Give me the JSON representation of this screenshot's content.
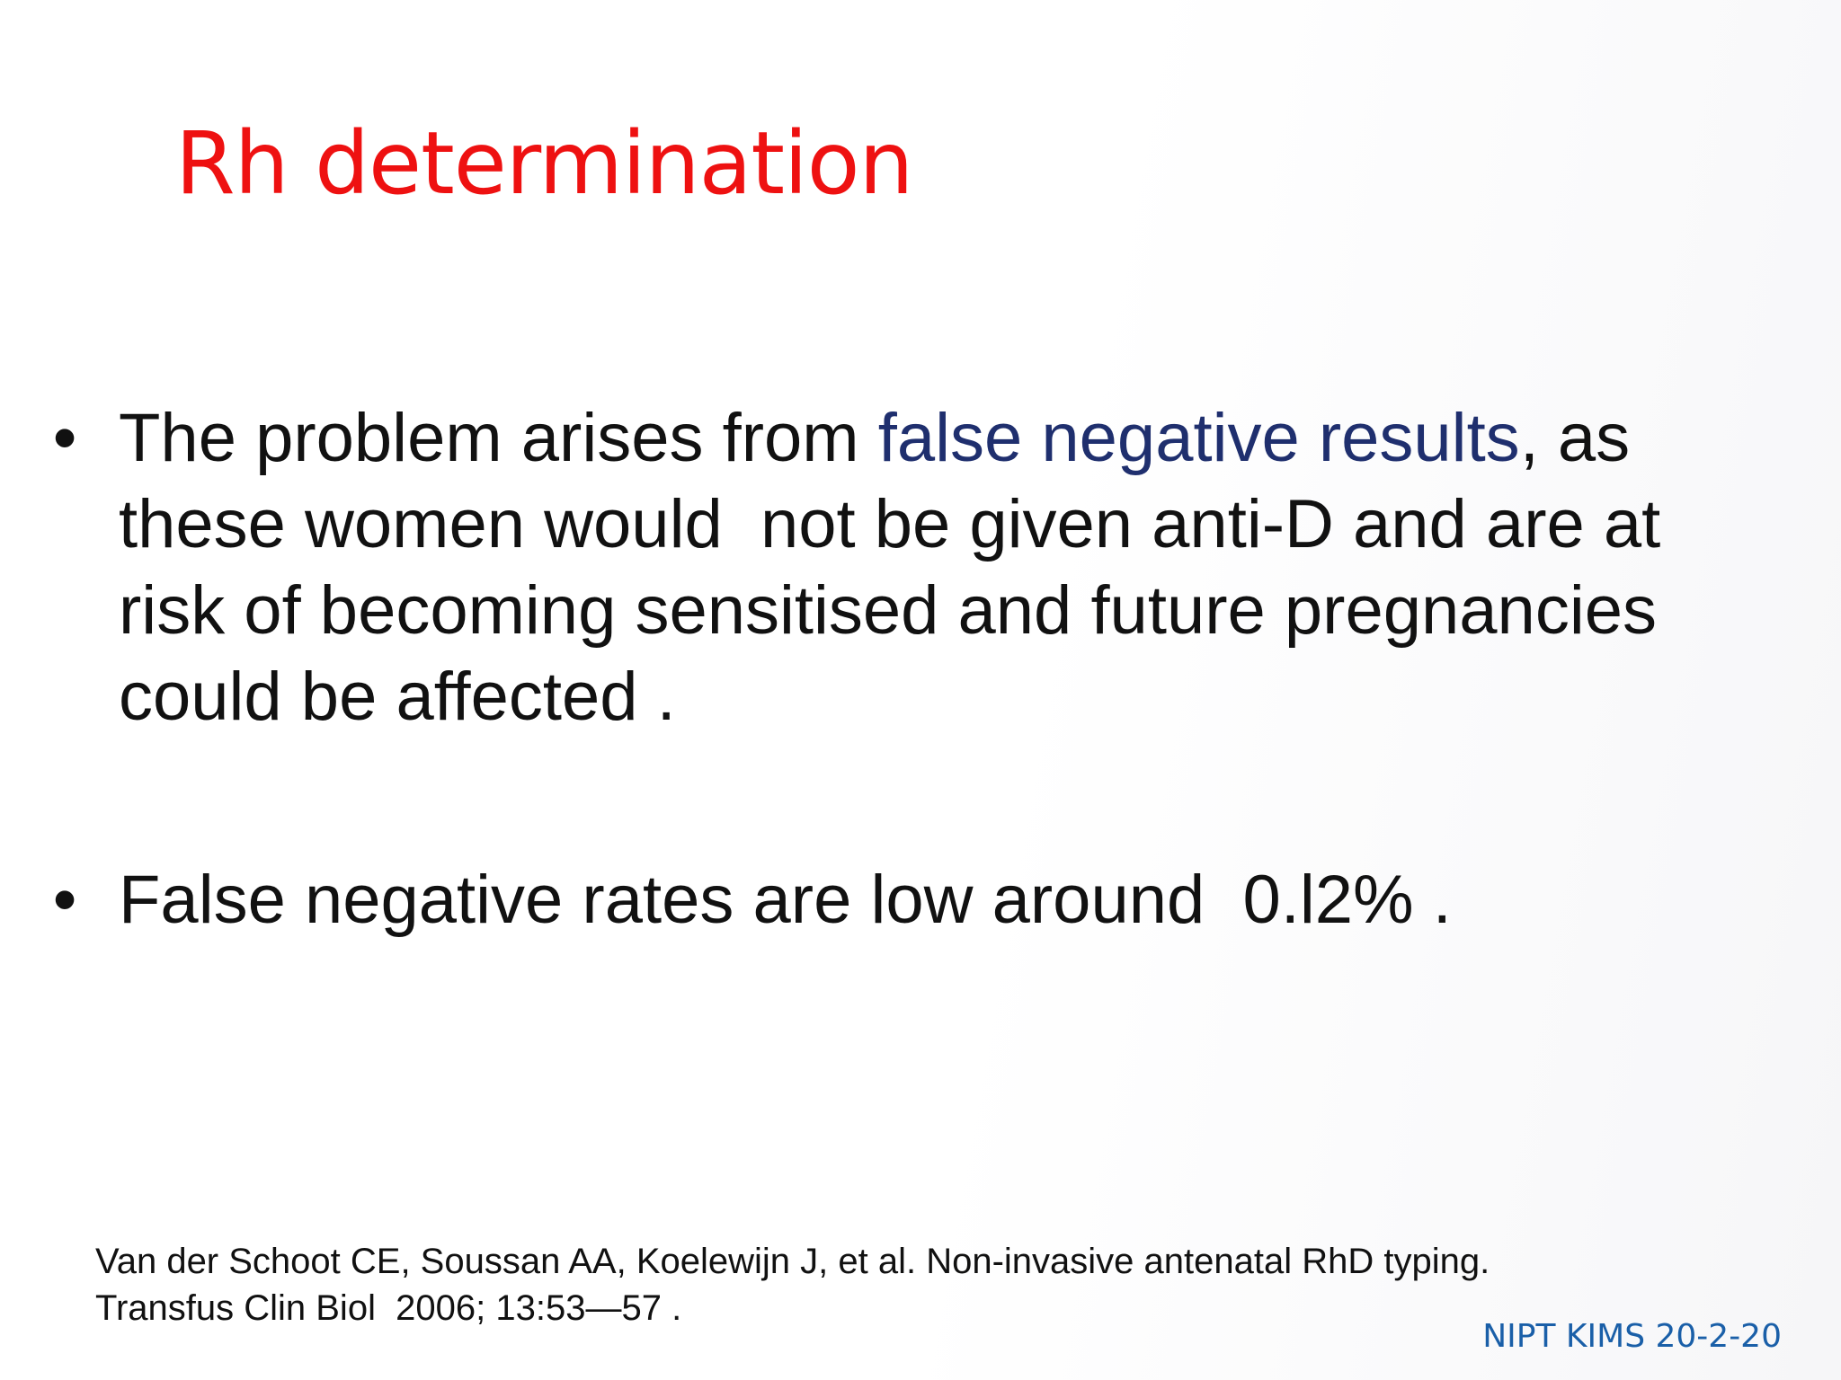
{
  "slide": {
    "title": "Rh determination",
    "bullets": [
      {
        "line1_before": "The problem arises from ",
        "line1_highlight": "false negative results",
        "line1_after": ", as",
        "line2": "these women would  not be given anti-D and are at",
        "line3": "risk of becoming sensitised and future pregnancies",
        "line4": "could be affected ."
      },
      {
        "text": "False negative rates are low around  0.l2% ."
      }
    ],
    "bullet_marker": "•",
    "reference": {
      "line1": "Van der Schoot CE, Soussan AA, Koelewijn J, et al. Non-invasive antenatal RhD typing.",
      "line2": "Transfus Clin Biol  2006; 13:53—57 ."
    },
    "footer": "NIPT KIMS 20-2-20"
  },
  "colors": {
    "title": "#ee1111",
    "highlight": "#1f2f6e",
    "body_text": "#111111",
    "footer": "#1a5fa8"
  }
}
